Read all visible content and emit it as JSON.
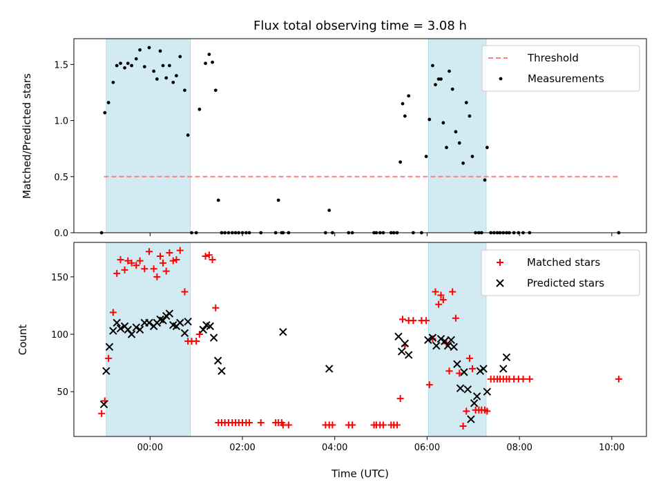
{
  "chart_data": {
    "title": "Flux total observing time = 3.08 h",
    "xlabel": "Time (UTC)",
    "xlim_hours": [
      -1.65,
      10.75
    ],
    "xticks": [
      {
        "h": 0,
        "label": "00:00"
      },
      {
        "h": 2,
        "label": "02:00"
      },
      {
        "h": 4,
        "label": "04:00"
      },
      {
        "h": 6,
        "label": "06:00"
      },
      {
        "h": 8,
        "label": "08:00"
      },
      {
        "h": 10,
        "label": "10:00"
      }
    ],
    "shaded_intervals_hours": [
      [
        -0.95,
        0.87
      ],
      [
        6.03,
        7.28
      ]
    ],
    "shade_color": "#add8e6",
    "panels": [
      {
        "type": "scatter",
        "ylabel": "Matched/Predicted stars",
        "ylim": [
          0,
          1.73
        ],
        "yticks": [
          {
            "v": 0.0,
            "label": "0.0"
          },
          {
            "v": 0.5,
            "label": "0.5"
          },
          {
            "v": 1.0,
            "label": "1.0"
          },
          {
            "v": 1.5,
            "label": "1.5"
          }
        ],
        "threshold": {
          "name": "Threshold",
          "value": 0.5,
          "x_range_hours": [
            -1.0,
            10.15
          ],
          "color": "#ff7f7f"
        },
        "series": [
          {
            "name": "Measurements",
            "marker": "dot",
            "color": "#000000",
            "x": [
              -1.05,
              -0.98,
              -0.9,
              -0.8,
              -0.72,
              -0.64,
              -0.55,
              -0.48,
              -0.4,
              -0.3,
              -0.22,
              -0.12,
              -0.02,
              0.08,
              0.15,
              0.22,
              0.28,
              0.35,
              0.42,
              0.5,
              0.57,
              0.65,
              0.75,
              0.82,
              0.9,
              1.0,
              1.07,
              1.2,
              1.28,
              1.35,
              1.42,
              1.48,
              1.55,
              1.62,
              1.7,
              1.78,
              1.85,
              1.92,
              2.0,
              2.08,
              2.15,
              2.4,
              2.72,
              2.78,
              2.85,
              2.88,
              3.0,
              3.8,
              3.88,
              3.95,
              4.3,
              4.38,
              4.85,
              4.9,
              4.98,
              5.05,
              5.22,
              5.28,
              5.35,
              5.42,
              5.47,
              5.52,
              5.6,
              5.7,
              5.88,
              5.98,
              6.05,
              6.12,
              6.18,
              6.25,
              6.3,
              6.35,
              6.42,
              6.48,
              6.55,
              6.62,
              6.7,
              6.78,
              6.85,
              6.92,
              6.98,
              7.05,
              7.12,
              7.18,
              7.25,
              7.3,
              7.38,
              7.45,
              7.52,
              7.58,
              7.65,
              7.72,
              7.78,
              7.88,
              7.98,
              8.08,
              8.22,
              10.15
            ],
            "y": [
              0,
              1.07,
              1.16,
              1.34,
              1.49,
              1.51,
              1.47,
              1.51,
              1.49,
              1.55,
              1.63,
              1.48,
              1.65,
              1.44,
              1.37,
              1.62,
              1.49,
              1.38,
              1.49,
              1.34,
              1.4,
              1.57,
              1.27,
              0.87,
              0,
              0,
              1.1,
              1.51,
              1.59,
              1.52,
              1.27,
              0.29,
              0,
              0,
              0,
              0,
              0,
              0,
              0,
              0,
              0,
              0,
              0,
              0.29,
              0,
              0,
              0,
              0,
              0.2,
              0,
              0,
              0,
              0,
              0,
              0,
              0,
              0,
              0,
              0,
              0.63,
              1.15,
              1.04,
              1.22,
              0,
              0,
              0.68,
              1.01,
              1.49,
              1.32,
              1.37,
              1.37,
              0.98,
              0.76,
              1.44,
              1.28,
              0.9,
              0.8,
              0.62,
              1.16,
              1.04,
              0.68,
              0,
              0,
              0,
              0.47,
              0.76,
              0,
              0,
              0,
              0,
              0,
              0,
              0,
              0,
              0,
              0,
              0,
              0
            ]
          }
        ]
      },
      {
        "type": "scatter",
        "ylabel": "Count",
        "ylim": [
          11,
          180
        ],
        "yticks": [
          {
            "v": 50,
            "label": "50"
          },
          {
            "v": 100,
            "label": "100"
          },
          {
            "v": 150,
            "label": "150"
          }
        ],
        "series": [
          {
            "name": "Matched stars",
            "marker": "plus",
            "color": "#ff0000",
            "x": [
              -1.05,
              -0.98,
              -0.9,
              -0.8,
              -0.72,
              -0.64,
              -0.55,
              -0.48,
              -0.4,
              -0.3,
              -0.22,
              -0.12,
              -0.02,
              0.08,
              0.15,
              0.22,
              0.28,
              0.35,
              0.42,
              0.5,
              0.57,
              0.65,
              0.75,
              0.82,
              0.9,
              1.0,
              1.07,
              1.2,
              1.28,
              1.35,
              1.42,
              1.48,
              1.55,
              1.62,
              1.7,
              1.78,
              1.85,
              1.92,
              2.0,
              2.08,
              2.15,
              2.4,
              2.72,
              2.78,
              2.85,
              2.88,
              3.0,
              3.8,
              3.88,
              3.95,
              4.3,
              4.38,
              4.85,
              4.9,
              4.98,
              5.05,
              5.22,
              5.28,
              5.35,
              5.42,
              5.47,
              5.52,
              5.6,
              5.7,
              5.88,
              5.98,
              6.05,
              6.12,
              6.18,
              6.25,
              6.3,
              6.35,
              6.42,
              6.48,
              6.55,
              6.62,
              6.7,
              6.78,
              6.85,
              6.92,
              6.98,
              7.05,
              7.12,
              7.18,
              7.25,
              7.3,
              7.38,
              7.45,
              7.52,
              7.58,
              7.65,
              7.72,
              7.78,
              7.88,
              7.98,
              8.08,
              8.22,
              10.15
            ],
            "y": [
              31,
              42,
              79,
              119,
              153,
              165,
              156,
              164,
              162,
              160,
              164,
              157,
              172,
              157,
              150,
              168,
              162,
              155,
              171,
              164,
              165,
              173,
              137,
              94,
              94,
              94,
              100,
              168,
              169,
              165,
              123,
              23,
              23,
              23,
              23,
              23,
              23,
              23,
              23,
              23,
              23,
              23,
              23,
              23,
              23,
              21,
              21,
              21,
              21,
              21,
              21,
              21,
              21,
              21,
              21,
              21,
              21,
              21,
              21,
              44,
              113,
              90,
              112,
              112,
              112,
              112,
              56,
              96,
              137,
              126,
              134,
              130,
              92,
              68,
              137,
              114,
              66,
              20,
              33,
              79,
              70,
              34,
              34,
              34,
              34,
              33,
              61,
              61,
              61,
              61,
              61,
              61,
              61,
              61,
              61,
              61,
              61,
              61
            ]
          },
          {
            "name": "Predicted stars",
            "marker": "x",
            "color": "#000000",
            "x": [
              -1.0,
              -0.95,
              -0.88,
              -0.8,
              -0.72,
              -0.64,
              -0.55,
              -0.48,
              -0.4,
              -0.3,
              -0.22,
              -0.12,
              -0.02,
              0.08,
              0.15,
              0.22,
              0.28,
              0.35,
              0.42,
              0.5,
              0.57,
              0.65,
              0.75,
              0.82,
              1.15,
              1.22,
              1.3,
              1.38,
              1.47,
              1.55,
              2.88,
              3.88,
              5.38,
              5.45,
              5.52,
              5.6,
              6.02,
              6.12,
              6.2,
              6.3,
              6.38,
              6.45,
              6.52,
              6.58,
              6.65,
              6.72,
              6.8,
              6.88,
              6.95,
              7.02,
              7.08,
              7.15,
              7.22,
              7.3,
              7.65,
              7.72
            ],
            "y": [
              39,
              68,
              89,
              103,
              110,
              105,
              107,
              104,
              100,
              106,
              104,
              110,
              110,
              107,
              110,
              113,
              112,
              116,
              118,
              108,
              107,
              110,
              101,
              111,
              104,
              108,
              107,
              97,
              77,
              68,
              102,
              70,
              98,
              85,
              92,
              82,
              95,
              97,
              90,
              96,
              94,
              90,
              95,
              89,
              74,
              53,
              67,
              52,
              26,
              40,
              46,
              68,
              70,
              50,
              70,
              80
            ]
          }
        ]
      }
    ]
  }
}
